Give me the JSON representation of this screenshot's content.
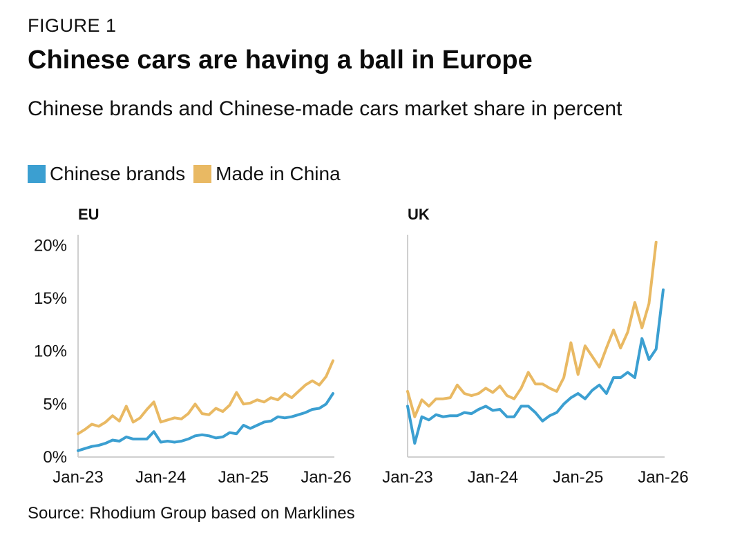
{
  "figure_label": "FIGURE 1",
  "chart_data": {
    "type": "line",
    "title": "Chinese cars are having a ball in Europe",
    "subtitle": "Chinese brands and Chinese-made cars market share in percent",
    "legend": [
      {
        "name": "Chinese brands",
        "color": "#3b9fd1"
      },
      {
        "name": "Made in China",
        "color": "#e9b963"
      }
    ],
    "legend_placement": "top-left",
    "grid": false,
    "ylim": [
      0,
      21
    ],
    "yticks": [
      0,
      5,
      10,
      15,
      20
    ],
    "ytick_labels": [
      "0%",
      "5%",
      "10%",
      "15%",
      "20%"
    ],
    "xticks": [
      0,
      12,
      24,
      36
    ],
    "xtick_labels": [
      "Jan-23",
      "Jan-24",
      "Jan-25",
      "Jan-26"
    ],
    "x_note": "monthly observations starting Jan-23 (x = months since Jan-23)",
    "panels": [
      {
        "title": "EU",
        "series": [
          {
            "name": "Chinese brands",
            "color": "#3b9fd1",
            "values": [
              0.6,
              0.8,
              1.0,
              1.1,
              1.3,
              1.6,
              1.5,
              1.9,
              1.7,
              1.7,
              1.7,
              2.4,
              1.4,
              1.5,
              1.4,
              1.5,
              1.7,
              2.0,
              2.1,
              2.0,
              1.8,
              1.9,
              2.3,
              2.2,
              3.0,
              2.7,
              3.0,
              3.3,
              3.4,
              3.8,
              3.7,
              3.8,
              4.0,
              4.2,
              4.5,
              4.6,
              5.0,
              6.0
            ]
          },
          {
            "name": "Made in China",
            "color": "#e9b963",
            "values": [
              2.2,
              2.6,
              3.1,
              2.9,
              3.3,
              3.9,
              3.4,
              4.8,
              3.3,
              3.7,
              4.5,
              5.2,
              3.3,
              3.5,
              3.7,
              3.6,
              4.1,
              5.0,
              4.1,
              4.0,
              4.6,
              4.3,
              4.9,
              6.1,
              5.0,
              5.1,
              5.4,
              5.2,
              5.6,
              5.4,
              6.0,
              5.6,
              6.2,
              6.8,
              7.2,
              6.8,
              7.6,
              9.1
            ]
          }
        ]
      },
      {
        "title": "UK",
        "series": [
          {
            "name": "Chinese brands",
            "color": "#3b9fd1",
            "values": [
              4.8,
              1.3,
              3.8,
              3.5,
              4.0,
              3.8,
              3.9,
              3.9,
              4.2,
              4.1,
              4.5,
              4.8,
              4.4,
              4.5,
              3.8,
              3.8,
              4.8,
              4.8,
              4.2,
              3.4,
              3.9,
              4.2,
              5.0,
              5.6,
              6.0,
              5.5,
              6.3,
              6.8,
              6.0,
              7.5,
              7.5,
              8.0,
              7.5,
              11.2,
              9.2,
              10.2,
              15.8
            ]
          },
          {
            "name": "Made in China",
            "color": "#e9b963",
            "values": [
              6.2,
              3.8,
              5.4,
              4.8,
              5.5,
              5.5,
              5.6,
              6.8,
              6.0,
              5.8,
              6.0,
              6.5,
              6.1,
              6.7,
              5.8,
              5.5,
              6.5,
              8.0,
              6.9,
              6.9,
              6.5,
              6.2,
              7.5,
              10.8,
              7.8,
              10.5,
              9.5,
              8.5,
              10.3,
              12.0,
              10.3,
              11.8,
              14.6,
              12.2,
              14.5,
              20.3
            ]
          }
        ]
      }
    ]
  },
  "source": "Source: Rhodium Group based on Marklines"
}
